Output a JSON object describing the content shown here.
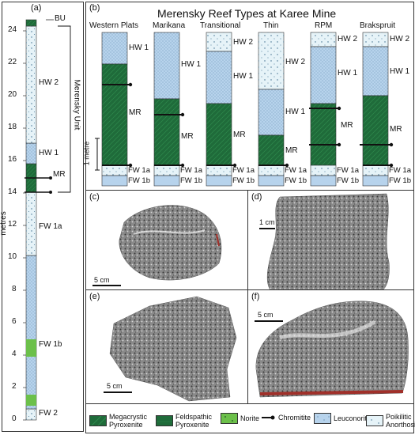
{
  "panel_a": {
    "label": "(a)",
    "ylabel": "metres",
    "ticks": [
      "0",
      "2",
      "4",
      "6",
      "8",
      "10",
      "12",
      "14",
      "16",
      "18",
      "20",
      "22",
      "24"
    ],
    "units": [
      "BU",
      "HW 2",
      "HW 1",
      "MR",
      "FW 1a",
      "FW 1b",
      "FW 2"
    ],
    "bracket_label": "Merensky Unit"
  },
  "panel_b": {
    "label": "(b)",
    "title": "Merensky Reef Types at Karee Mine",
    "scale_label": "1 metre",
    "columns": [
      {
        "name": "Western Plats",
        "labels": [
          "HW 1",
          "MR",
          "FW 1a",
          "FW 1b"
        ]
      },
      {
        "name": "Marikana",
        "labels": [
          "HW 1",
          "MR",
          "FW 1a",
          "FW 1b"
        ]
      },
      {
        "name": "Transitional",
        "labels": [
          "HW 2",
          "HW 1",
          "MR",
          "FW 1a",
          "FW 1b"
        ]
      },
      {
        "name": "Thin",
        "labels": [
          "HW 2",
          "HW 1",
          "MR",
          "FW 1a",
          "FW 1b"
        ]
      },
      {
        "name": "RPM",
        "labels": [
          "HW 2",
          "HW 1",
          "MR",
          "FW 1a",
          "FW 1b"
        ]
      },
      {
        "name": "Brakspruit",
        "labels": [
          "HW 2",
          "HW 1",
          "MR",
          "FW 1a",
          "FW 1b"
        ]
      }
    ]
  },
  "photos": [
    {
      "label": "(c)",
      "scale": "5 cm"
    },
    {
      "label": "(d)",
      "scale": "1 cm"
    },
    {
      "label": "(e)",
      "scale": "5 cm"
    },
    {
      "label": "(f)",
      "scale": "5 cm"
    }
  ],
  "legend": [
    {
      "label": "Megacrystic Pyroxenite",
      "icon": "megacrystic-swatch"
    },
    {
      "label": "Feldspathic Pyroxenite",
      "icon": "feldspathic-swatch"
    },
    {
      "label": "Norite",
      "icon": "norite-swatch"
    },
    {
      "label": "Chromitite",
      "icon": "chromitite-arrow"
    },
    {
      "label": "Leuconorite",
      "icon": "leuconorite-swatch"
    },
    {
      "label": "Poikilitic Anorthosite",
      "icon": "anorthosite-swatch"
    }
  ],
  "colors": {
    "pyroxenite": "#1f6b3a",
    "leuconorite": "#b7d3ec",
    "anorthosite": "#e6f3f8",
    "norite": "#6cc04a",
    "chromitite": "#111111"
  }
}
